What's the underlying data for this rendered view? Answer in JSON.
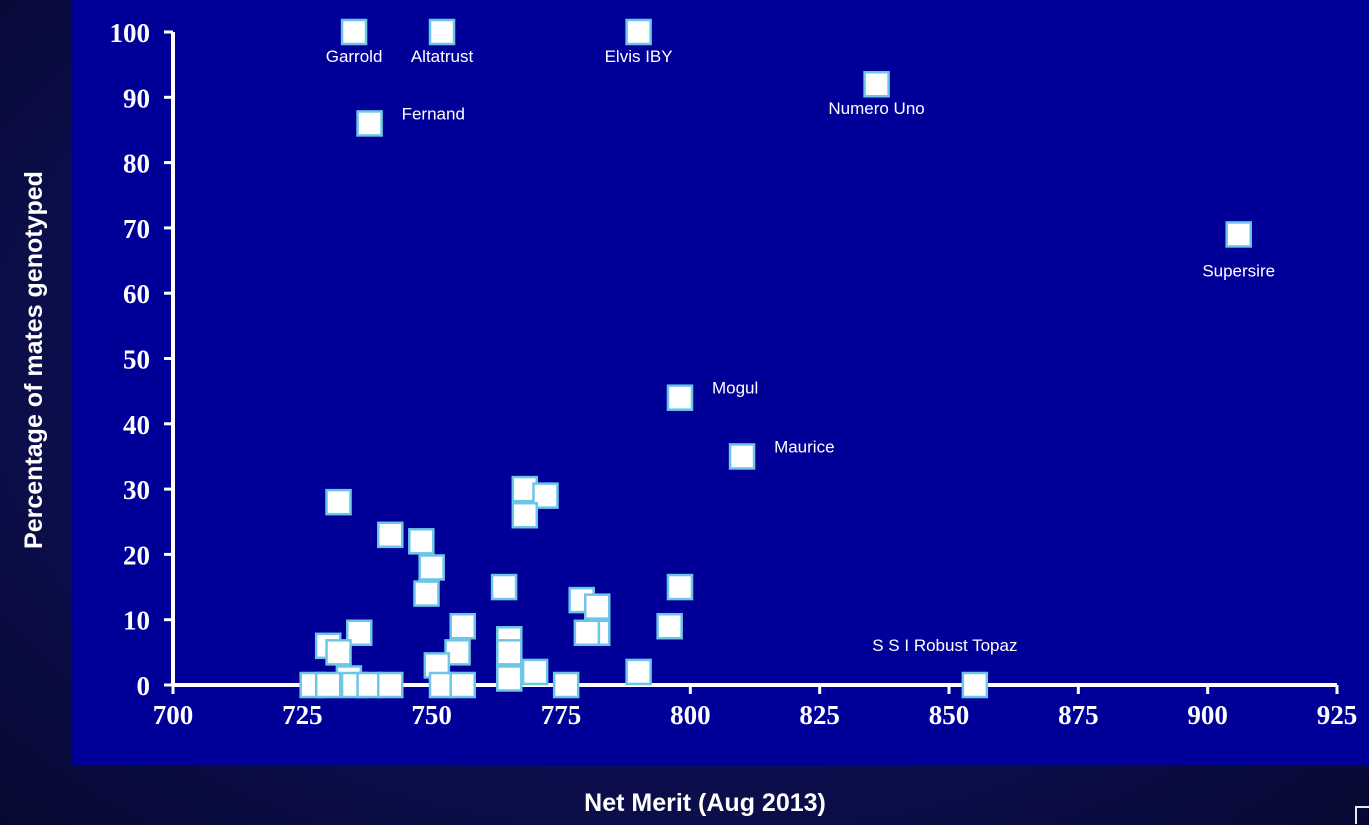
{
  "colors": {
    "background": "#0d1052",
    "plot_area": "#000099",
    "marker_fill": "#ffffff",
    "marker_stroke": "#6ec6e6",
    "axis": "#ffffff",
    "text": "#ffffff"
  },
  "chart_data": {
    "type": "scatter",
    "title": "",
    "xlabel": "Net Merit (Aug 2013)",
    "ylabel": "Percentage of mates genotyped",
    "xlim": [
      700,
      925
    ],
    "ylim": [
      0,
      100
    ],
    "xticks": [
      700,
      725,
      750,
      775,
      800,
      825,
      850,
      875,
      900,
      925
    ],
    "yticks": [
      0,
      10,
      20,
      30,
      40,
      50,
      60,
      70,
      80,
      90,
      100
    ],
    "grid": false,
    "legend": "none",
    "points": [
      {
        "x": 735,
        "y": 100,
        "label": "Garrold"
      },
      {
        "x": 752,
        "y": 100,
        "label": "Altatrust"
      },
      {
        "x": 790,
        "y": 100,
        "label": "Elvis IBY"
      },
      {
        "x": 836,
        "y": 92,
        "label": "Numero Uno"
      },
      {
        "x": 738,
        "y": 86,
        "label": "Fernand"
      },
      {
        "x": 906,
        "y": 69,
        "label": "Supersire"
      },
      {
        "x": 798,
        "y": 44,
        "label": "Mogul"
      },
      {
        "x": 810,
        "y": 35,
        "label": "Maurice"
      },
      {
        "x": 855,
        "y": 0,
        "label": "S S I Robust Topaz"
      },
      {
        "x": 732,
        "y": 28,
        "label": ""
      },
      {
        "x": 742,
        "y": 23,
        "label": ""
      },
      {
        "x": 748,
        "y": 22,
        "label": ""
      },
      {
        "x": 750,
        "y": 18,
        "label": ""
      },
      {
        "x": 749,
        "y": 14,
        "label": ""
      },
      {
        "x": 768,
        "y": 30,
        "label": ""
      },
      {
        "x": 772,
        "y": 29,
        "label": ""
      },
      {
        "x": 768,
        "y": 26,
        "label": ""
      },
      {
        "x": 764,
        "y": 15,
        "label": ""
      },
      {
        "x": 798,
        "y": 15,
        "label": ""
      },
      {
        "x": 779,
        "y": 13,
        "label": ""
      },
      {
        "x": 782,
        "y": 12,
        "label": ""
      },
      {
        "x": 782,
        "y": 8,
        "label": ""
      },
      {
        "x": 780,
        "y": 8,
        "label": ""
      },
      {
        "x": 796,
        "y": 9,
        "label": ""
      },
      {
        "x": 756,
        "y": 9,
        "label": ""
      },
      {
        "x": 755,
        "y": 5,
        "label": ""
      },
      {
        "x": 736,
        "y": 8,
        "label": ""
      },
      {
        "x": 730,
        "y": 6,
        "label": ""
      },
      {
        "x": 732,
        "y": 5,
        "label": ""
      },
      {
        "x": 765,
        "y": 7,
        "label": ""
      },
      {
        "x": 765,
        "y": 5,
        "label": ""
      },
      {
        "x": 751,
        "y": 3,
        "label": ""
      },
      {
        "x": 790,
        "y": 2,
        "label": ""
      },
      {
        "x": 770,
        "y": 2,
        "label": ""
      },
      {
        "x": 765,
        "y": 1,
        "label": ""
      },
      {
        "x": 734,
        "y": 1,
        "label": ""
      },
      {
        "x": 727,
        "y": 0,
        "label": ""
      },
      {
        "x": 730,
        "y": 0,
        "label": ""
      },
      {
        "x": 735,
        "y": 0,
        "label": ""
      },
      {
        "x": 738,
        "y": 0,
        "label": ""
      },
      {
        "x": 742,
        "y": 0,
        "label": ""
      },
      {
        "x": 752,
        "y": 0,
        "label": ""
      },
      {
        "x": 756,
        "y": 0,
        "label": ""
      },
      {
        "x": 776,
        "y": 0,
        "label": ""
      }
    ]
  }
}
